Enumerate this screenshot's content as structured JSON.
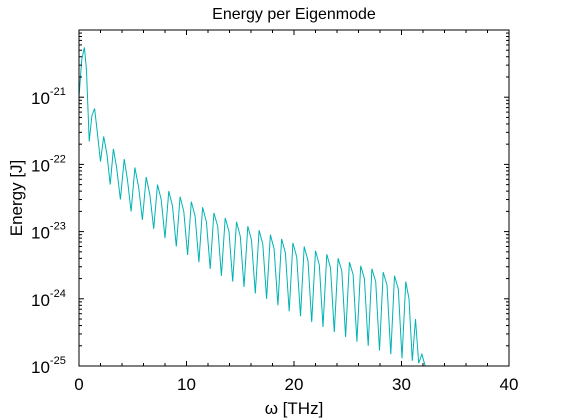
{
  "chart_data": {
    "type": "line",
    "title": "Energy per Eigenmode",
    "xlabel": "ω [THz]",
    "ylabel": "Energy [J]",
    "xlim": [
      0,
      40
    ],
    "ylim": [
      1e-25,
      1e-20
    ],
    "yscale": "log",
    "grid": false,
    "x_ticks": [
      {
        "value": 0,
        "label": "0"
      },
      {
        "value": 10,
        "label": "10"
      },
      {
        "value": 20,
        "label": "20"
      },
      {
        "value": 30,
        "label": "30"
      },
      {
        "value": 40,
        "label": "40"
      }
    ],
    "y_ticks": [
      {
        "value": 1e-25,
        "base": "10",
        "exp": "-25"
      },
      {
        "value": 1e-24,
        "base": "10",
        "exp": "-24"
      },
      {
        "value": 1e-23,
        "base": "10",
        "exp": "-23"
      },
      {
        "value": 1e-22,
        "base": "10",
        "exp": "-22"
      },
      {
        "value": 1e-21,
        "base": "10",
        "exp": "-21"
      }
    ],
    "series": [
      {
        "color": "#00b3b3",
        "x": [
          0.0,
          0.25,
          0.5,
          0.7,
          0.95,
          1.2,
          1.45,
          1.7,
          2.0,
          2.3,
          2.6,
          2.9,
          3.2,
          3.5,
          3.85,
          4.2,
          4.5,
          4.85,
          5.2,
          5.55,
          5.9,
          6.25,
          6.6,
          6.95,
          7.3,
          7.65,
          8.0,
          8.35,
          8.7,
          9.05,
          9.4,
          9.75,
          10.1,
          10.45,
          10.8,
          11.15,
          11.5,
          11.85,
          12.2,
          12.55,
          12.9,
          13.25,
          13.6,
          13.95,
          14.3,
          14.65,
          15.0,
          15.35,
          15.7,
          16.05,
          16.4,
          16.75,
          17.1,
          17.45,
          17.8,
          18.15,
          18.5,
          18.85,
          19.2,
          19.55,
          19.9,
          20.25,
          20.6,
          20.95,
          21.3,
          21.65,
          22.0,
          22.35,
          22.7,
          23.05,
          23.4,
          23.75,
          24.1,
          24.45,
          24.8,
          25.15,
          25.5,
          25.85,
          26.2,
          26.55,
          26.9,
          27.25,
          27.6,
          27.95,
          28.3,
          28.65,
          29.0,
          29.35,
          29.7,
          30.05,
          30.4,
          30.7,
          31.0,
          31.3,
          31.6,
          31.9,
          32.2
        ],
        "y": [
          1e-21,
          3.6e-21,
          5.5e-21,
          2.5e-21,
          2.2e-22,
          5.3e-22,
          6.8e-22,
          3e-22,
          1.1e-22,
          2.6e-22,
          1.4e-22,
          5e-23,
          1.7e-22,
          9e-23,
          3e-23,
          1.2e-22,
          6e-23,
          2e-23,
          9e-23,
          4.5e-23,
          1.5e-23,
          6.5e-23,
          3.5e-23,
          1.1e-23,
          5e-23,
          3e-23,
          8e-24,
          4e-23,
          2.4e-23,
          6e-24,
          3.3e-23,
          2e-23,
          4.5e-24,
          2.8e-23,
          1.7e-23,
          3.5e-24,
          2.3e-23,
          1.4e-23,
          2.8e-24,
          1.9e-23,
          1.2e-23,
          2.2e-24,
          1.6e-23,
          1e-23,
          1.8e-24,
          1.4e-23,
          8.5e-24,
          1.5e-24,
          1.2e-23,
          7.5e-24,
          1.2e-24,
          1.05e-23,
          6.5e-24,
          1e-24,
          9e-24,
          5.5e-24,
          8e-25,
          7.8e-24,
          4.8e-24,
          6.5e-25,
          6.8e-24,
          4.2e-24,
          5.5e-25,
          6e-24,
          3.7e-24,
          4.5e-25,
          5.2e-24,
          3.2e-24,
          3.8e-25,
          4.6e-24,
          2.9e-24,
          3.2e-25,
          4e-24,
          2.6e-24,
          2.7e-25,
          3.5e-24,
          2.3e-24,
          2.3e-25,
          3.1e-24,
          2e-24,
          2e-25,
          2.8e-24,
          1.8e-24,
          1.7e-25,
          2.5e-24,
          1.6e-24,
          1.5e-25,
          2.2e-24,
          1.4e-24,
          1.3e-25,
          1.8e-24,
          1e-24,
          1.2e-25,
          5e-25,
          1.1e-25,
          1.5e-25,
          1e-25
        ]
      }
    ]
  }
}
